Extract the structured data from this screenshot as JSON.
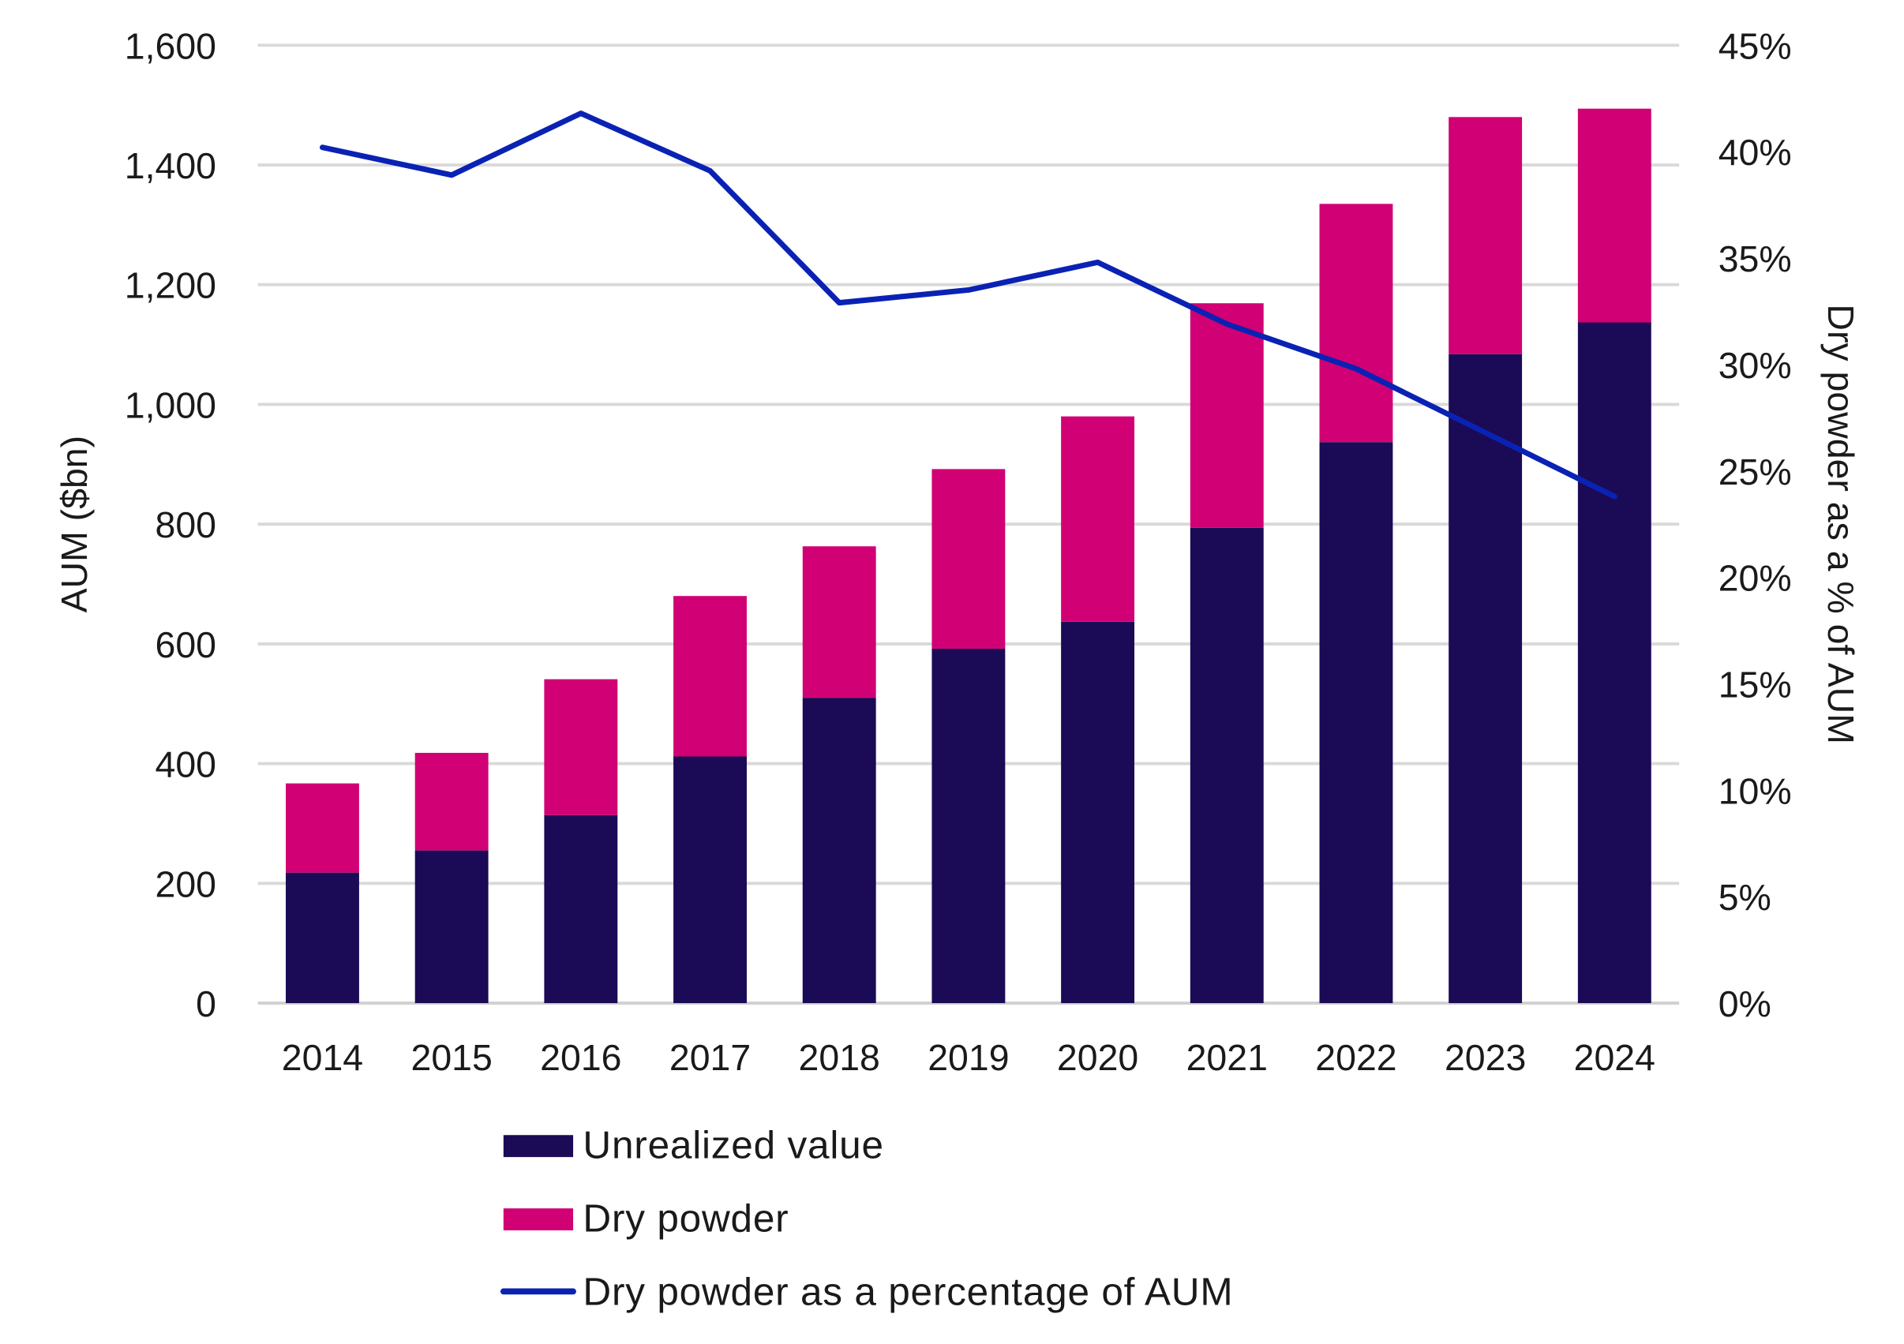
{
  "chart_data": {
    "type": "bar",
    "stacked": true,
    "categories": [
      "2014",
      "2015",
      "2016",
      "2017",
      "2018",
      "2019",
      "2020",
      "2021",
      "2022",
      "2023",
      "2024"
    ],
    "series": [
      {
        "name": "Unrealized value",
        "type": "bar",
        "axis": "left",
        "color": "#1b0a55",
        "values": [
          218,
          255,
          314,
          412,
          510,
          592,
          637,
          794,
          937,
          1084,
          1137
        ]
      },
      {
        "name": "Dry powder",
        "type": "bar",
        "axis": "left",
        "color": "#d10074",
        "values": [
          149,
          163,
          227,
          268,
          253,
          300,
          343,
          375,
          398,
          396,
          357
        ]
      },
      {
        "name": "Dry powder as a percentage of AUM",
        "type": "line",
        "axis": "right",
        "color": "#0a22b4",
        "values": [
          40.2,
          38.9,
          41.8,
          39.1,
          32.9,
          33.5,
          34.8,
          31.9,
          29.8,
          26.8,
          23.8
        ]
      }
    ],
    "ylabel": "AUM ($bn)",
    "ylabel_right": "Dry powder as a % of AUM",
    "ylim": [
      0,
      1600
    ],
    "ylim_right": [
      0,
      45
    ],
    "yticks": [
      "0",
      "200",
      "400",
      "600",
      "800",
      "1,000",
      "1,200",
      "1,400",
      "1,600"
    ],
    "yticks_right": [
      "0%",
      "5%",
      "10%",
      "15%",
      "20%",
      "25%",
      "30%",
      "35%",
      "40%",
      "45%"
    ],
    "grid": true,
    "legend_position": "bottom"
  }
}
